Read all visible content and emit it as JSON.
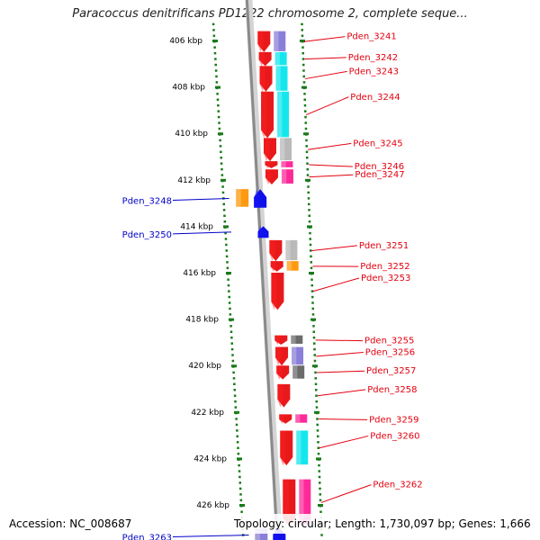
{
  "title": "Paracoccus denitrificans PD1222 chromosome 2, complete seque...",
  "footer": {
    "accession": "Accession: NC_008687",
    "summary": "Topology: circular; Length: 1,730,097 bp; Genes: 1,666"
  },
  "colors": {
    "red": "#e8191b",
    "cyan": "#14e6ee",
    "lavender": "#8a7fd8",
    "grey": "#b9b9b9",
    "dark_grey": "#6b6b6b",
    "magenta": "#ff2a9a",
    "orange": "#ff9a10",
    "blue": "#1010e8",
    "label_red": "#e3000f",
    "label_blue": "#0000c8",
    "tick_green": "#1a7a1a",
    "axis_grey": "#8a8a8a"
  },
  "scale": {
    "unit": "kbp",
    "ticks": [
      {
        "kbp": 406,
        "label": "406 kbp"
      },
      {
        "kbp": 408,
        "label": "408 kbp"
      },
      {
        "kbp": 410,
        "label": "410 kbp"
      },
      {
        "kbp": 412,
        "label": "412 kbp"
      },
      {
        "kbp": 414,
        "label": "414 kbp"
      },
      {
        "kbp": 416,
        "label": "416 kbp"
      },
      {
        "kbp": 418,
        "label": "418 kbp"
      },
      {
        "kbp": 420,
        "label": "420 kbp"
      },
      {
        "kbp": 422,
        "label": "422 kbp"
      },
      {
        "kbp": 424,
        "label": "424 kbp"
      },
      {
        "kbp": 426,
        "label": "426 kbp"
      }
    ]
  },
  "genes": [
    {
      "label": "Pden_3241",
      "strand": "+",
      "start": 405.6,
      "end": 406.5,
      "partner": "lavender"
    },
    {
      "label": "Pden_3242",
      "strand": "+",
      "start": 406.5,
      "end": 407.1,
      "partner": "cyan"
    },
    {
      "label": "Pden_3243",
      "strand": "+",
      "start": 407.1,
      "end": 408.2,
      "partner": "cyan"
    },
    {
      "label": "Pden_3244",
      "strand": "+",
      "start": 408.2,
      "end": 410.2,
      "partner": "cyan"
    },
    {
      "label": "Pden_3245",
      "strand": "+",
      "start": 410.2,
      "end": 411.2,
      "partner": "grey"
    },
    {
      "label": "Pden_3246",
      "strand": "+",
      "start": 411.2,
      "end": 411.5,
      "partner": "magenta"
    },
    {
      "label": "Pden_3247",
      "strand": "+",
      "start": 411.55,
      "end": 412.2,
      "partner": "magenta"
    },
    {
      "label": "Pden_3248",
      "strand": "-",
      "start": 412.4,
      "end": 413.2,
      "partner": "orange"
    },
    {
      "label": "Pden_3250",
      "strand": "-",
      "start": 414.0,
      "end": 414.5,
      "partner": ""
    },
    {
      "label": "Pden_3251",
      "strand": "+",
      "start": 414.6,
      "end": 415.5,
      "partner": "grey"
    },
    {
      "label": "Pden_3252",
      "strand": "+",
      "start": 415.5,
      "end": 415.95,
      "partner": "orange"
    },
    {
      "label": "Pden_3253",
      "strand": "+",
      "start": 416.0,
      "end": 417.6,
      "partner": ""
    },
    {
      "label": "Pden_3255",
      "strand": "+",
      "start": 418.7,
      "end": 419.1,
      "partner": "dark_grey"
    },
    {
      "label": "Pden_3256",
      "strand": "+",
      "start": 419.2,
      "end": 420.0,
      "partner": "lavender"
    },
    {
      "label": "Pden_3257",
      "strand": "+",
      "start": 420.0,
      "end": 420.6,
      "partner": "dark_grey"
    },
    {
      "label": "Pden_3258",
      "strand": "+",
      "start": 420.8,
      "end": 421.8,
      "partner": ""
    },
    {
      "label": "Pden_3259",
      "strand": "+",
      "start": 422.1,
      "end": 422.5,
      "partner": "magenta"
    },
    {
      "label": "Pden_3260",
      "strand": "+",
      "start": 422.8,
      "end": 424.3,
      "partner": "cyan"
    },
    {
      "label": "Pden_3262",
      "strand": "+",
      "start": 424.9,
      "end": 426.9,
      "partner": "magenta"
    },
    {
      "label": "Pden_3263",
      "strand": "-",
      "start": 427.0,
      "end": 427.6,
      "partner": "lavender"
    }
  ]
}
